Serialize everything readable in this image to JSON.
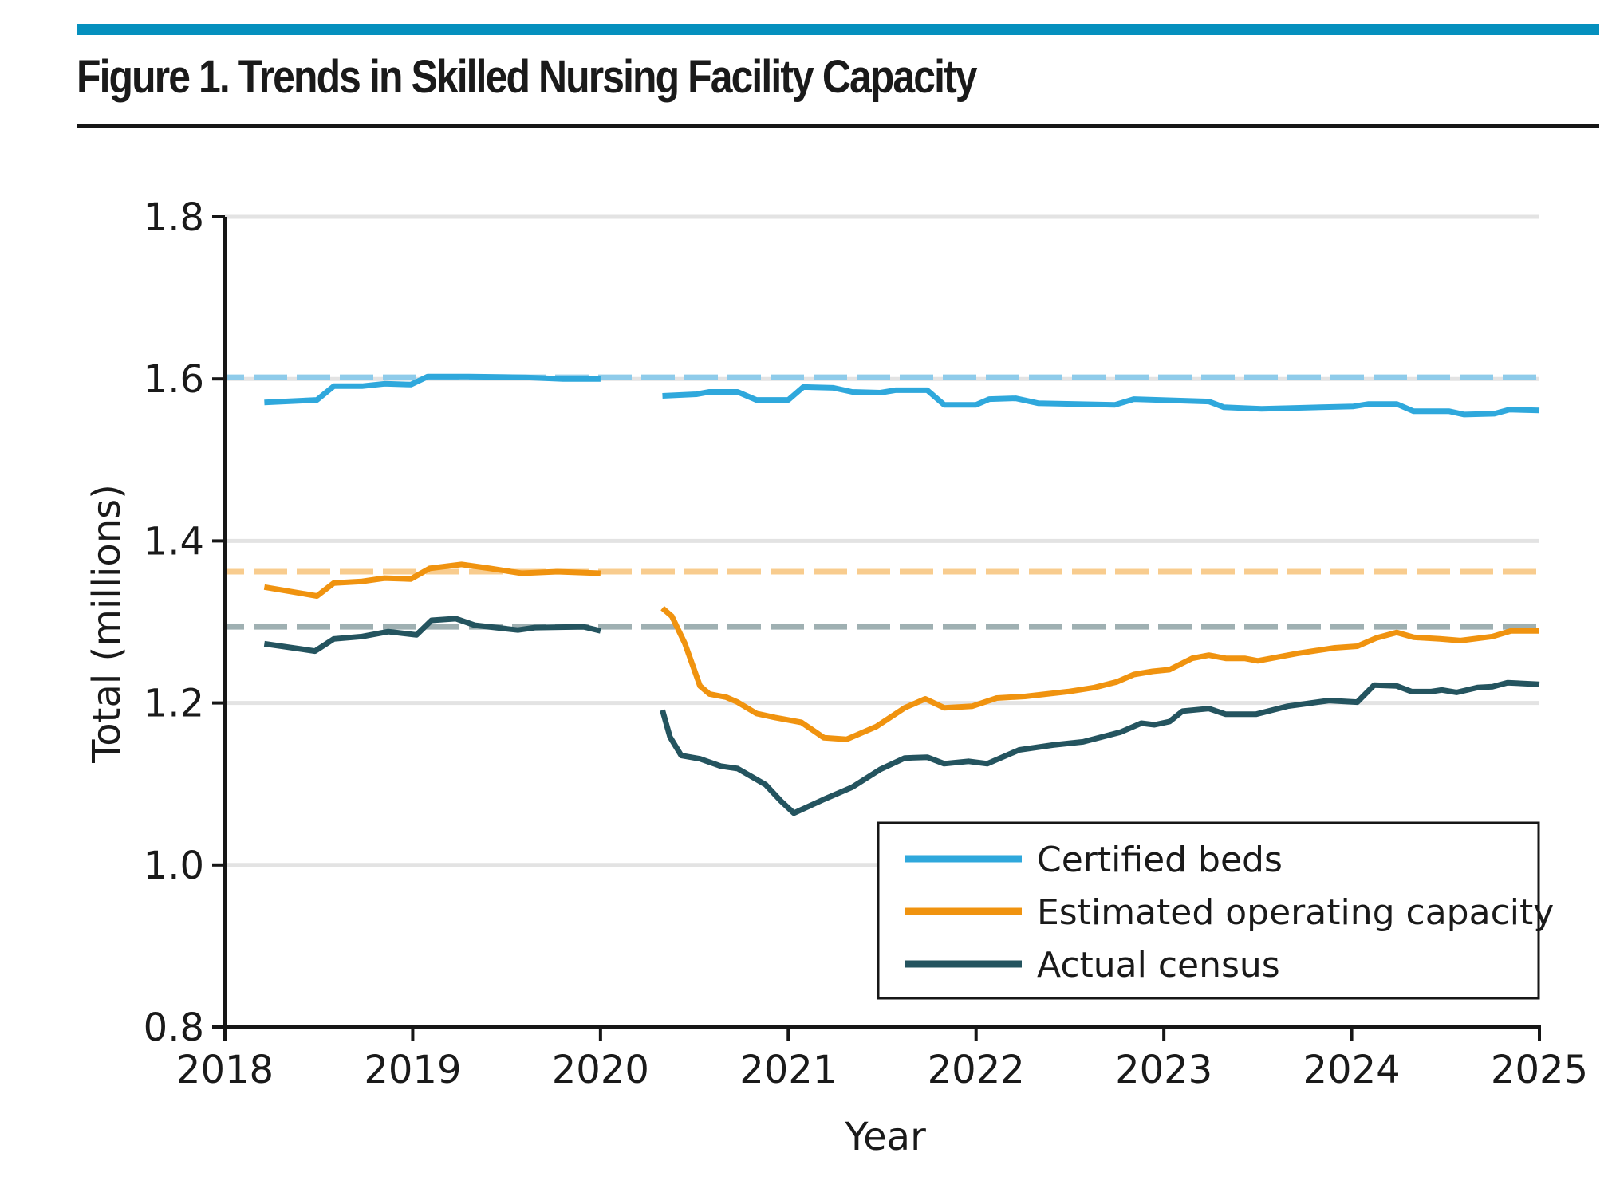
{
  "figure": {
    "title": "Figure 1. Trends in Skilled Nursing Facility Capacity",
    "accent_color": "#0590be"
  },
  "chart_data": {
    "type": "line",
    "title": "Figure 1. Trends in Skilled Nursing Facility Capacity",
    "xlabel": "Year",
    "ylabel": "Total (millions)",
    "xlim": [
      2018,
      2025
    ],
    "ylim": [
      0.8,
      1.8
    ],
    "x_ticks": [
      2018,
      2019,
      2020,
      2021,
      2022,
      2023,
      2024,
      2025
    ],
    "x_tick_labels": [
      "2018",
      "2019",
      "2020",
      "2021",
      "2022",
      "2023",
      "2024",
      "2025"
    ],
    "y_ticks": [
      0.8,
      1.0,
      1.2,
      1.4,
      1.6,
      1.8
    ],
    "y_tick_labels": [
      "0.8",
      "1.0",
      "1.2",
      "1.4",
      "1.6",
      "1.8"
    ],
    "grid": "horizontal",
    "legend_position": "bottom-right",
    "series": [
      {
        "name": "Certified beds",
        "color": "#2fa8dc",
        "reference_value": 1.602,
        "reference_color": "#8ecbea",
        "segments": [
          [
            [
              2018.21,
              1.571
            ],
            [
              2018.49,
              1.574
            ],
            [
              2018.58,
              1.591
            ],
            [
              2018.73,
              1.591
            ],
            [
              2018.85,
              1.594
            ],
            [
              2018.99,
              1.593
            ],
            [
              2019.08,
              1.603
            ],
            [
              2019.3,
              1.603
            ],
            [
              2019.6,
              1.602
            ],
            [
              2019.8,
              1.6
            ],
            [
              2020.0,
              1.6
            ]
          ],
          [
            [
              2020.33,
              1.579
            ],
            [
              2020.51,
              1.581
            ],
            [
              2020.58,
              1.584
            ],
            [
              2020.73,
              1.584
            ],
            [
              2020.83,
              1.574
            ],
            [
              2021.0,
              1.574
            ],
            [
              2021.08,
              1.59
            ],
            [
              2021.24,
              1.589
            ],
            [
              2021.34,
              1.584
            ],
            [
              2021.49,
              1.583
            ],
            [
              2021.57,
              1.586
            ],
            [
              2021.74,
              1.586
            ],
            [
              2021.83,
              1.568
            ],
            [
              2022.0,
              1.568
            ],
            [
              2022.07,
              1.575
            ],
            [
              2022.21,
              1.576
            ],
            [
              2022.33,
              1.57
            ],
            [
              2022.74,
              1.568
            ],
            [
              2022.84,
              1.575
            ],
            [
              2023.24,
              1.572
            ],
            [
              2023.32,
              1.565
            ],
            [
              2023.52,
              1.563
            ],
            [
              2024.01,
              1.566
            ],
            [
              2024.09,
              1.569
            ],
            [
              2024.24,
              1.569
            ],
            [
              2024.33,
              1.56
            ],
            [
              2024.52,
              1.56
            ],
            [
              2024.6,
              1.556
            ],
            [
              2024.76,
              1.557
            ],
            [
              2024.84,
              1.562
            ],
            [
              2025.0,
              1.561
            ]
          ]
        ]
      },
      {
        "name": "Estimated operating capacity",
        "color": "#f0930f",
        "reference_value": 1.362,
        "reference_color": "#f8cc8e",
        "segments": [
          [
            [
              2018.21,
              1.343
            ],
            [
              2018.49,
              1.332
            ],
            [
              2018.58,
              1.348
            ],
            [
              2018.73,
              1.35
            ],
            [
              2018.85,
              1.354
            ],
            [
              2018.99,
              1.353
            ],
            [
              2019.09,
              1.366
            ],
            [
              2019.26,
              1.371
            ],
            [
              2019.41,
              1.366
            ],
            [
              2019.58,
              1.36
            ],
            [
              2019.77,
              1.362
            ],
            [
              2020.0,
              1.36
            ]
          ],
          [
            [
              2020.33,
              1.317
            ],
            [
              2020.38,
              1.307
            ],
            [
              2020.45,
              1.273
            ],
            [
              2020.53,
              1.221
            ],
            [
              2020.58,
              1.211
            ],
            [
              2020.67,
              1.207
            ],
            [
              2020.73,
              1.201
            ],
            [
              2020.83,
              1.187
            ],
            [
              2020.93,
              1.182
            ],
            [
              2021.07,
              1.176
            ],
            [
              2021.19,
              1.157
            ],
            [
              2021.31,
              1.155
            ],
            [
              2021.47,
              1.171
            ],
            [
              2021.62,
              1.194
            ],
            [
              2021.73,
              1.205
            ],
            [
              2021.83,
              1.194
            ],
            [
              2021.98,
              1.196
            ],
            [
              2022.11,
              1.206
            ],
            [
              2022.26,
              1.208
            ],
            [
              2022.49,
              1.214
            ],
            [
              2022.63,
              1.219
            ],
            [
              2022.75,
              1.226
            ],
            [
              2022.84,
              1.235
            ],
            [
              2022.94,
              1.239
            ],
            [
              2023.03,
              1.241
            ],
            [
              2023.15,
              1.255
            ],
            [
              2023.24,
              1.259
            ],
            [
              2023.33,
              1.255
            ],
            [
              2023.43,
              1.255
            ],
            [
              2023.5,
              1.252
            ],
            [
              2023.71,
              1.261
            ],
            [
              2023.91,
              1.268
            ],
            [
              2024.03,
              1.27
            ],
            [
              2024.13,
              1.28
            ],
            [
              2024.24,
              1.287
            ],
            [
              2024.33,
              1.281
            ],
            [
              2024.47,
              1.279
            ],
            [
              2024.58,
              1.277
            ],
            [
              2024.75,
              1.282
            ],
            [
              2024.85,
              1.289
            ],
            [
              2025.0,
              1.289
            ]
          ]
        ]
      },
      {
        "name": "Actual census",
        "color": "#24545f",
        "reference_value": 1.294,
        "reference_color": "#9fb0b2",
        "segments": [
          [
            [
              2018.21,
              1.273
            ],
            [
              2018.48,
              1.264
            ],
            [
              2018.58,
              1.279
            ],
            [
              2018.73,
              1.282
            ],
            [
              2018.87,
              1.288
            ],
            [
              2019.02,
              1.284
            ],
            [
              2019.1,
              1.302
            ],
            [
              2019.23,
              1.304
            ],
            [
              2019.33,
              1.296
            ],
            [
              2019.56,
              1.29
            ],
            [
              2019.65,
              1.293
            ],
            [
              2019.91,
              1.294
            ],
            [
              2020.0,
              1.289
            ]
          ],
          [
            [
              2020.33,
              1.191
            ],
            [
              2020.37,
              1.158
            ],
            [
              2020.43,
              1.135
            ],
            [
              2020.53,
              1.131
            ],
            [
              2020.64,
              1.122
            ],
            [
              2020.73,
              1.119
            ],
            [
              2020.88,
              1.099
            ],
            [
              2020.96,
              1.079
            ],
            [
              2021.03,
              1.064
            ],
            [
              2021.19,
              1.081
            ],
            [
              2021.34,
              1.096
            ],
            [
              2021.49,
              1.118
            ],
            [
              2021.62,
              1.132
            ],
            [
              2021.74,
              1.133
            ],
            [
              2021.83,
              1.125
            ],
            [
              2021.96,
              1.128
            ],
            [
              2022.06,
              1.125
            ],
            [
              2022.23,
              1.142
            ],
            [
              2022.41,
              1.148
            ],
            [
              2022.57,
              1.152
            ],
            [
              2022.77,
              1.164
            ],
            [
              2022.88,
              1.175
            ],
            [
              2022.95,
              1.173
            ],
            [
              2023.03,
              1.177
            ],
            [
              2023.1,
              1.19
            ],
            [
              2023.24,
              1.193
            ],
            [
              2023.33,
              1.186
            ],
            [
              2023.49,
              1.186
            ],
            [
              2023.66,
              1.196
            ],
            [
              2023.88,
              1.203
            ],
            [
              2024.03,
              1.201
            ],
            [
              2024.12,
              1.222
            ],
            [
              2024.24,
              1.221
            ],
            [
              2024.32,
              1.214
            ],
            [
              2024.42,
              1.214
            ],
            [
              2024.48,
              1.216
            ],
            [
              2024.56,
              1.213
            ],
            [
              2024.67,
              1.219
            ],
            [
              2024.75,
              1.22
            ],
            [
              2024.83,
              1.225
            ],
            [
              2025.0,
              1.223
            ]
          ]
        ]
      }
    ]
  },
  "legend": {
    "items": [
      {
        "label": "Certified beds",
        "color": "#2fa8dc"
      },
      {
        "label": "Estimated operating capacity",
        "color": "#f0930f"
      },
      {
        "label": "Actual census",
        "color": "#24545f"
      }
    ]
  }
}
